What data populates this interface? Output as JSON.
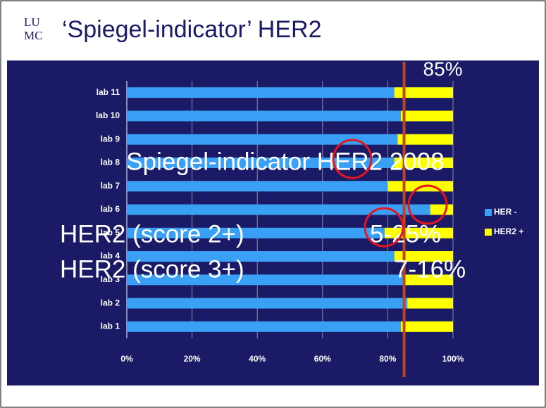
{
  "header": {
    "logo": {
      "top": "LU",
      "bottom": "MC"
    },
    "title": "‘Spiegel-indicator’ HER2"
  },
  "chart_data": {
    "type": "stacked-barh",
    "categories": [
      "lab 1",
      "lab 2",
      "lab 3",
      "lab 4",
      "lab 5",
      "lab 6",
      "lab 7",
      "lab 8",
      "lab 9",
      "lab 10",
      "lab 11"
    ],
    "series": [
      {
        "name": "HER -",
        "color": "#3aa0f5",
        "values": [
          84,
          86,
          85,
          82,
          79,
          93,
          80,
          82,
          83,
          84,
          82
        ]
      },
      {
        "name": "HER2 +",
        "color": "#ffff00",
        "values": [
          16,
          14,
          15,
          18,
          21,
          7,
          20,
          18,
          17,
          16,
          18
        ]
      }
    ],
    "xlim": [
      0,
      100
    ],
    "xticks": [
      {
        "value": 0,
        "label": "0%"
      },
      {
        "value": 20,
        "label": "20%"
      },
      {
        "value": 40,
        "label": "40%"
      },
      {
        "value": 60,
        "label": "60%"
      },
      {
        "value": 80,
        "label": "80%"
      },
      {
        "value": 100,
        "label": "100%"
      }
    ],
    "reference_line": {
      "value": 85,
      "label": "85%",
      "color": "#c0451f"
    },
    "legend": "right"
  },
  "overlay": {
    "heading": "Spiegel-indicator HER2 2008",
    "rows": [
      {
        "label": "HER2 (score 2+)",
        "range": "5-25%"
      },
      {
        "label": "HER2 (score 3+)",
        "range": "7-16%"
      }
    ]
  }
}
